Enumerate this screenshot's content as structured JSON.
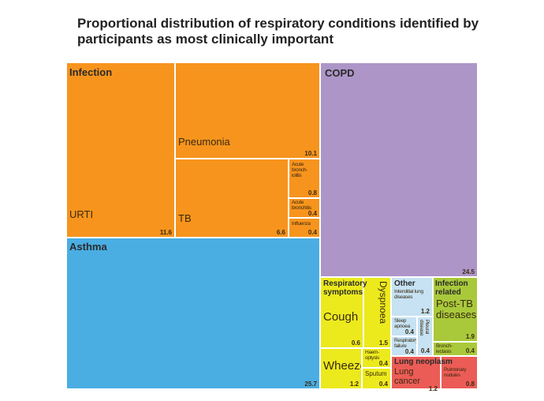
{
  "chart_data": {
    "type": "treemap",
    "title": "Proportional distribution of respiratory conditions identified by participants as most clinically important",
    "groups": [
      {
        "name": "Infection",
        "items": [
          {
            "name": "URTI",
            "value": 11.6
          },
          {
            "name": "Pneumonia",
            "value": 10.1
          },
          {
            "name": "TB",
            "value": 6.6
          },
          {
            "name": "Acute bronch-iolitis",
            "value": 0.8
          },
          {
            "name": "Acute bronchitis",
            "value": 0.4
          },
          {
            "name": "Influenza",
            "value": 0.4
          }
        ]
      },
      {
        "name": "Asthma",
        "items": [
          {
            "name": "Asthma",
            "value": 25.7
          }
        ]
      },
      {
        "name": "COPD",
        "items": [
          {
            "name": "COPD",
            "value": 24.5
          }
        ]
      },
      {
        "name": "Respiratory symptoms",
        "items": [
          {
            "name": "Cough",
            "value": 0.6
          },
          {
            "name": "Dyspnoea",
            "value": 1.5
          },
          {
            "name": "Wheeze",
            "value": 1.2
          },
          {
            "name": "Haem-optysis",
            "value": 0.4
          },
          {
            "name": "Sputum",
            "value": 0.4
          }
        ]
      },
      {
        "name": "Other",
        "items": [
          {
            "name": "Interstitial lung diseases",
            "value": 1.2
          },
          {
            "name": "Sleep apnoea",
            "value": 0.4
          },
          {
            "name": "Respiratory failure",
            "value": 0.4
          },
          {
            "name": "Pleural disease",
            "value": 0.4
          }
        ]
      },
      {
        "name": "Infection related",
        "items": [
          {
            "name": "Post-TB diseases",
            "value": 1.9
          },
          {
            "name": "Bronch-iectasis",
            "value": 0.4
          }
        ]
      },
      {
        "name": "Lung neoplasm",
        "items": [
          {
            "name": "Lung cancer",
            "value": 1.2
          },
          {
            "name": "Pulmonary nodules",
            "value": 0.8
          }
        ]
      }
    ]
  }
}
